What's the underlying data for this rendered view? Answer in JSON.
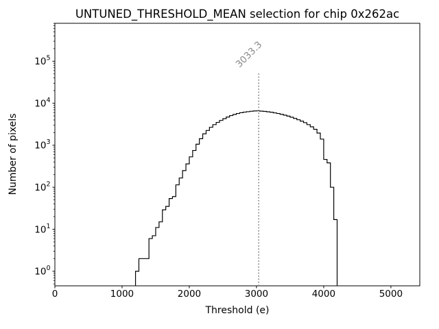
{
  "chart_data": {
    "type": "histogram-step",
    "title": "UNTUNED_THRESHOLD_MEAN selection for chip 0x262ac",
    "xlabel": "Threshold (e)",
    "ylabel": "Number of pixels",
    "yscale": "log",
    "xlim": [
      0,
      5430
    ],
    "ylim": [
      0.45,
      800000
    ],
    "x_ticks": [
      0,
      1000,
      2000,
      3000,
      4000,
      5000
    ],
    "y_tick_exponents": [
      0,
      1,
      2,
      3,
      4,
      5
    ],
    "grid": false,
    "legend": "none",
    "bin_start": 1200,
    "bin_width": 50,
    "counts": [
      1,
      2,
      2,
      2,
      6,
      7,
      11,
      15,
      29,
      35,
      54,
      60,
      114,
      166,
      249,
      360,
      530,
      750,
      1060,
      1430,
      1870,
      2250,
      2680,
      3100,
      3500,
      3900,
      4300,
      4700,
      5100,
      5400,
      5700,
      5950,
      6150,
      6300,
      6450,
      6550,
      6600,
      6500,
      6400,
      6250,
      6100,
      5900,
      5700,
      5450,
      5200,
      4950,
      4650,
      4350,
      4050,
      3750,
      3450,
      3100,
      2750,
      2400,
      1950,
      1400,
      460,
      380,
      100,
      17
    ],
    "marker": {
      "value": 3033.3,
      "label": "3033.3",
      "style": "dotted",
      "color": "#888888",
      "ymax_fraction": 0.81
    },
    "line_color": "#000000",
    "background": "#ffffff"
  }
}
